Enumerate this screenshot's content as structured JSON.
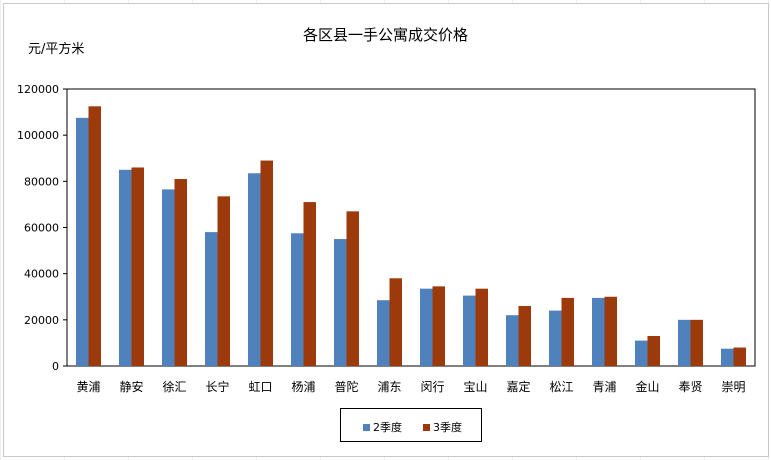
{
  "chart_data": {
    "type": "bar",
    "title": "各区县一手公寓成交价格",
    "ylabel": "元/平方米",
    "xlabel": "",
    "ylim": [
      0,
      120000
    ],
    "yticks": [
      0,
      20000,
      40000,
      60000,
      80000,
      100000,
      120000
    ],
    "ytick_labels": [
      "0",
      "20000",
      "40000",
      "60000",
      "80000",
      "100000",
      "120000"
    ],
    "categories": [
      "黄浦",
      "静安",
      "徐汇",
      "长宁",
      "虹口",
      "杨浦",
      "普陀",
      "浦东",
      "闵行",
      "宝山",
      "嘉定",
      "松江",
      "青浦",
      "金山",
      "奉贤",
      "崇明"
    ],
    "series": [
      {
        "name": "2季度",
        "color": "#4F81BD",
        "values": [
          107500,
          85000,
          76500,
          58000,
          83500,
          57500,
          55000,
          28500,
          33500,
          30500,
          22000,
          24000,
          29500,
          11000,
          20000,
          7500
        ]
      },
      {
        "name": "3季度",
        "color": "#9C3A0B",
        "values": [
          112500,
          86000,
          81000,
          73500,
          89000,
          71000,
          67000,
          38000,
          34500,
          33500,
          26000,
          29500,
          30000,
          13000,
          20000,
          8000
        ]
      }
    ],
    "grid": false,
    "legend_position": "bottom"
  }
}
